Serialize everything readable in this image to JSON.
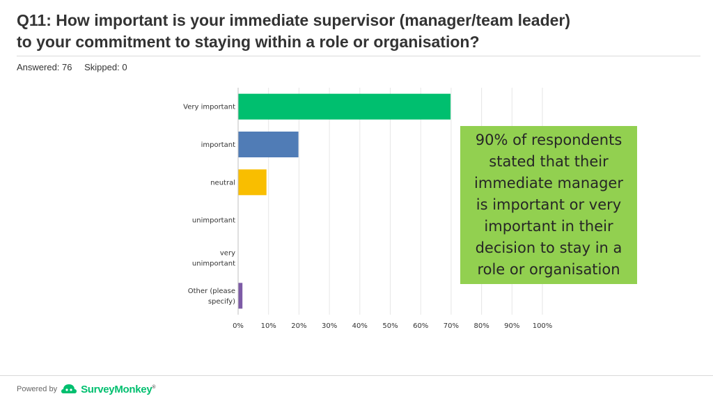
{
  "header": {
    "title_line1": "Q11: How important is your immediate supervisor (manager/team leader)",
    "title_line2": "to your commitment to staying within a role or organisation?",
    "answered": "Answered: 76",
    "skipped": "Skipped: 0"
  },
  "callout": {
    "text": "90% of respondents stated that their immediate manager is important or very important in their decision to stay in a role or organisation"
  },
  "footer": {
    "powered_by": "Powered by",
    "brand": "SurveyMonkey",
    "brand_mark": "®"
  },
  "chart_data": {
    "type": "bar",
    "orientation": "horizontal",
    "categories": [
      [
        "Very important"
      ],
      [
        "important"
      ],
      [
        "neutral"
      ],
      [
        "unimportant"
      ],
      [
        "very",
        "unimportant"
      ],
      [
        "Other (please",
        "specify)"
      ]
    ],
    "values": [
      69.7,
      19.7,
      9.2,
      0,
      0,
      1.3
    ],
    "colors": [
      "#00bf6f",
      "#507cb6",
      "#f9be00",
      "#6bc8cd",
      "#ff8b4f",
      "#7d5ba6"
    ],
    "unit": "%",
    "xlim": [
      0,
      100
    ],
    "xticks": [
      "0%",
      "10%",
      "20%",
      "30%",
      "40%",
      "50%",
      "60%",
      "70%",
      "80%",
      "90%",
      "100%"
    ],
    "grid": true
  }
}
